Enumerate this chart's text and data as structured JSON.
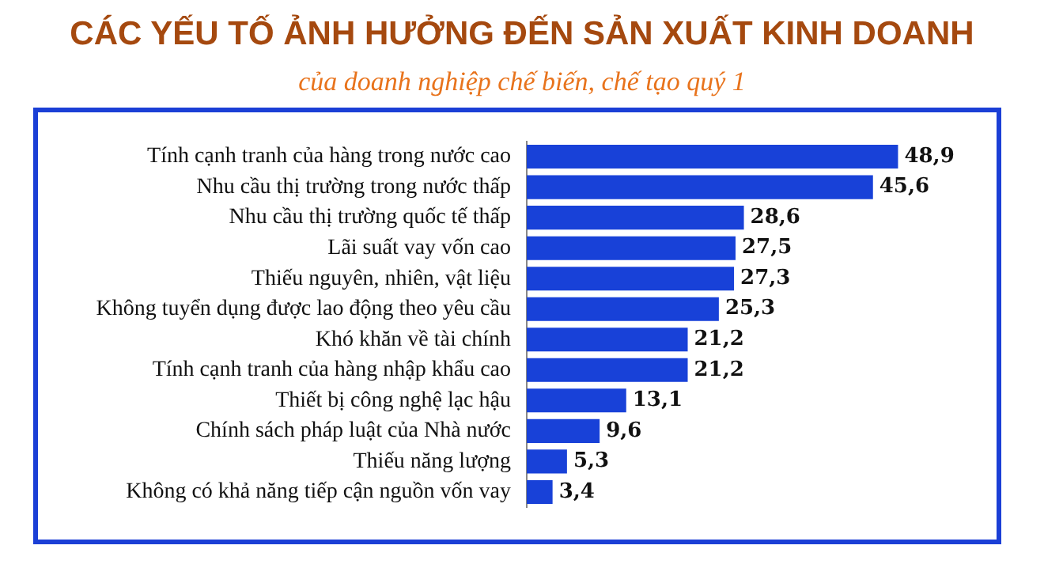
{
  "chart_data": {
    "type": "bar",
    "orientation": "horizontal",
    "title": "CÁC YẾU TỐ ẢNH HƯỞNG ĐẾN SẢN XUẤT KINH DOANH",
    "subtitle": "của doanh nghiệp chế biến, chế tạo quý 1",
    "categories": [
      "Tính cạnh tranh của hàng trong nước cao",
      "Nhu cầu thị trường trong nước thấp",
      "Nhu cầu thị trường quốc tế thấp",
      "Lãi suất vay vốn cao",
      "Thiếu nguyên, nhiên, vật liệu",
      "Không tuyển dụng được lao động theo yêu cầu",
      "Khó khăn về tài chính",
      "Tính cạnh tranh của hàng nhập khẩu cao",
      "Thiết bị công nghệ lạc hậu",
      "Chính sách pháp luật của Nhà nước",
      "Thiếu năng lượng",
      "Không có khả năng tiếp cận nguồn vốn vay"
    ],
    "values": [
      48.9,
      45.6,
      28.6,
      27.5,
      27.3,
      25.3,
      21.2,
      21.2,
      13.1,
      9.6,
      5.3,
      3.4
    ],
    "value_labels": [
      "48,9",
      "45,6",
      "28,6",
      "27,5",
      "27,3",
      "25,3",
      "21,2",
      "21,2",
      "13,1",
      "9,6",
      "5,3",
      "3,4"
    ],
    "color": "#1841d8",
    "grid": false,
    "legend": false,
    "tick_labels": "y"
  }
}
